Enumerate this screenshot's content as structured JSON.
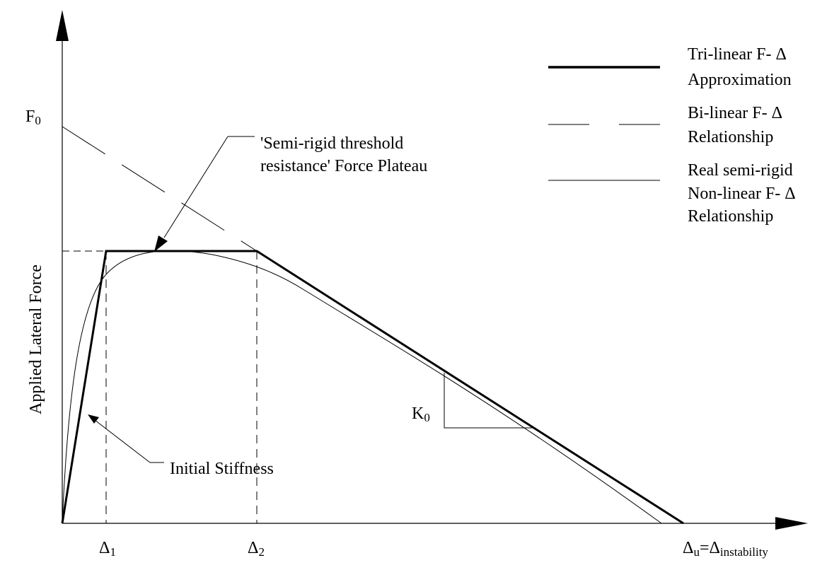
{
  "axes": {
    "y_label": "Applied Lateral Force",
    "f0": {
      "main": "F",
      "sub": "0"
    },
    "k0": {
      "main": "K",
      "sub": "0"
    },
    "delta1": {
      "main": "Δ",
      "sub": "1"
    },
    "delta2": {
      "main": "Δ",
      "sub": "2"
    },
    "delta_u": {
      "main": "Δ",
      "sub": "u",
      "eq": "=",
      "main2": "Δ",
      "sub2": "instability"
    }
  },
  "annotations": {
    "plateau_line1": "'Semi-rigid threshold",
    "plateau_line2": "resistance' Force Plateau",
    "initial_stiffness": "Initial Stiffness"
  },
  "legend": [
    {
      "line1": "Tri-linear F- Δ",
      "line2": "Approximation",
      "line3": "",
      "style": "thick-solid"
    },
    {
      "line1": "Bi-linear F- Δ",
      "line2": "Relationship",
      "line3": "",
      "style": "dashed"
    },
    {
      "line1": "Real semi-rigid",
      "line2": "Non-linear F- Δ",
      "line3": "Relationship",
      "style": "thin-solid"
    }
  ],
  "colors": {
    "ink": "#000000",
    "background": "#ffffff"
  }
}
